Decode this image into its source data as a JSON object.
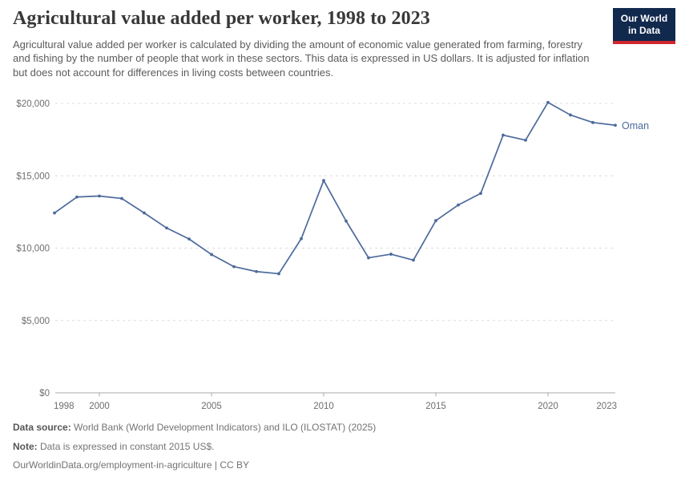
{
  "header": {
    "title": "Agricultural value added per worker, 1998 to 2023",
    "subtitle": "Agricultural value added per worker is calculated by dividing the amount of economic value generated from farming, forestry and fishing by the number of people that work in these sectors. This data is expressed in US dollars. It is adjusted for inflation but does not account for differences in living costs between countries.",
    "logo": {
      "line1": "Our World",
      "line2": "in Data",
      "bg_color": "#12294e",
      "accent_color": "#d2262e"
    }
  },
  "chart_data": {
    "type": "line",
    "title": "Agricultural value added per worker, 1998 to 2023",
    "xlabel": "",
    "ylabel": "",
    "xlim": [
      1998,
      2023
    ],
    "ylim": [
      0,
      20000
    ],
    "grid": "horizontal dashed gridlines",
    "legend_position": "end-of-line entity label",
    "end_label": "Oman",
    "x": [
      1998,
      1999,
      2000,
      2001,
      2002,
      2003,
      2004,
      2005,
      2006,
      2007,
      2008,
      2009,
      2010,
      2011,
      2012,
      2013,
      2014,
      2015,
      2016,
      2017,
      2018,
      2019,
      2020,
      2021,
      2022,
      2023
    ],
    "series": [
      {
        "name": "Oman",
        "color": "#4C6A9C",
        "values": [
          12430,
          13530,
          13600,
          13430,
          12430,
          11390,
          10630,
          9560,
          8720,
          8380,
          8230,
          10650,
          14670,
          11870,
          9330,
          9580,
          9170,
          11900,
          12980,
          13780,
          17810,
          17460,
          20070,
          19200,
          18680,
          18490
        ]
      }
    ],
    "x_ticks": {
      "values": [
        1998,
        2000,
        2005,
        2010,
        2015,
        2020,
        2023
      ],
      "labels": [
        "1998",
        "2000",
        "2005",
        "2010",
        "2015",
        "2020",
        "2023"
      ]
    },
    "y_ticks": {
      "values": [
        0,
        5000,
        10000,
        15000,
        20000
      ],
      "labels": [
        "$0",
        "$5,000",
        "$10,000",
        "$15,000",
        "$20,000"
      ]
    }
  },
  "footer": {
    "data_source_label": "Data source:",
    "data_source_text": "World Bank (World Development Indicators) and ILO (ILOSTAT) (2025)",
    "note_label": "Note:",
    "note_text": "Data is expressed in constant 2015 US$.",
    "citation": "OurWorldinData.org/employment-in-agriculture | CC BY"
  },
  "colors": {
    "line": "#4C6A9C",
    "grid": "#dcdcdc",
    "axis": "#a8a8a8",
    "tick_label": "#6e6e6e",
    "title": "#383838",
    "subtitle": "#5b5b5b",
    "footer": "#737373"
  }
}
